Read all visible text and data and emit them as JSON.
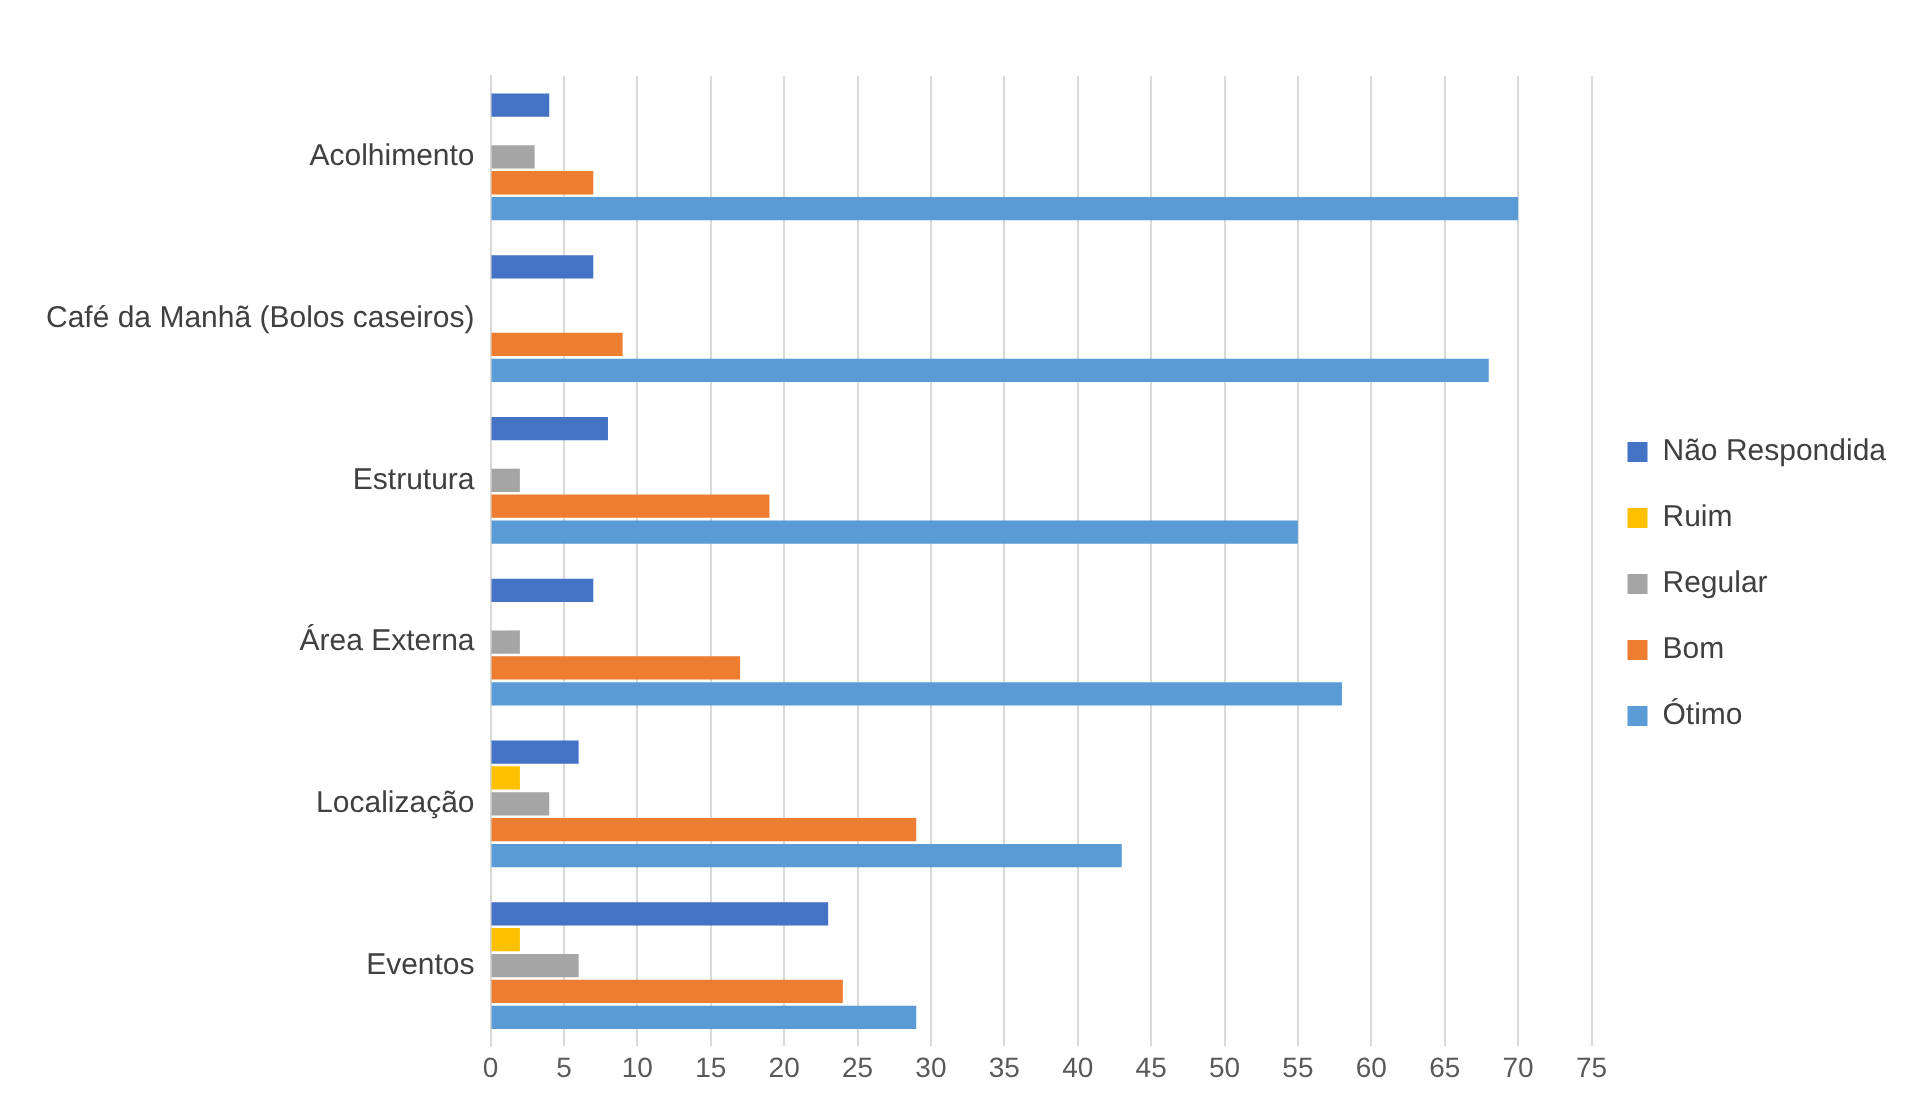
{
  "chart_data": {
    "type": "bar",
    "orientation": "horizontal",
    "categories": [
      "Acolhimento",
      "Café da Manhã (Bolos caseiros)",
      "Estrutura",
      "Área Externa",
      "Localização",
      "Eventos"
    ],
    "series": [
      {
        "name": "Não Respondida",
        "color": "#4472c4",
        "values": [
          4,
          7,
          8,
          7,
          6,
          23
        ]
      },
      {
        "name": "Ruim",
        "color": "#ffc000",
        "values": [
          0,
          0,
          0,
          0,
          2,
          2
        ]
      },
      {
        "name": "Regular",
        "color": "#a5a5a5",
        "values": [
          3,
          0,
          2,
          2,
          4,
          6
        ]
      },
      {
        "name": "Bom",
        "color": "#ed7d31",
        "values": [
          7,
          9,
          19,
          17,
          29,
          24
        ]
      },
      {
        "name": "Ótimo",
        "color": "#5b9bd5",
        "values": [
          70,
          68,
          55,
          58,
          43,
          29
        ]
      }
    ],
    "xlim": [
      0,
      75
    ],
    "xticks": [
      0,
      5,
      10,
      15,
      20,
      25,
      30,
      35,
      40,
      45,
      50,
      55,
      60,
      65,
      70,
      75
    ],
    "grid": "x",
    "legend": "right"
  }
}
